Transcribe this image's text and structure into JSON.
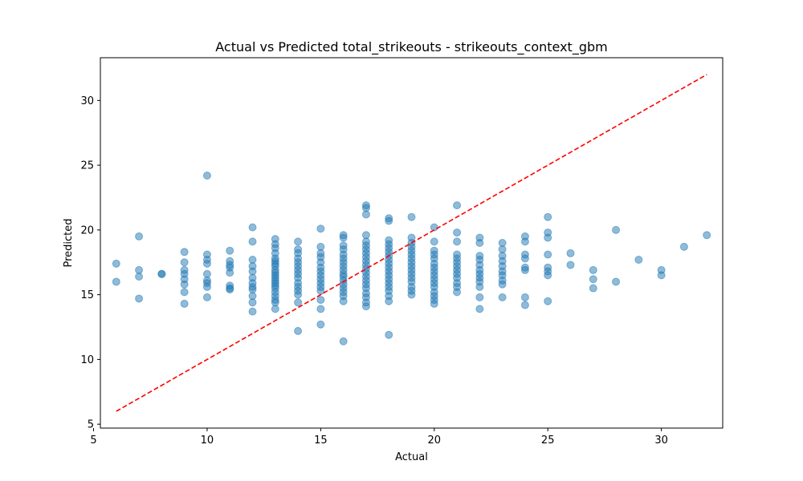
{
  "chart_data": {
    "type": "scatter",
    "title": "Actual vs Predicted total_strikeouts - strikeouts_context_gbm",
    "xlabel": "Actual",
    "ylabel": "Predicted",
    "xlim": [
      5.3,
      32.7
    ],
    "ylim": [
      4.7,
      33.3
    ],
    "x_ticks": [
      5,
      10,
      15,
      20,
      25,
      30
    ],
    "y_ticks": [
      5,
      10,
      15,
      20,
      25,
      30
    ],
    "grid": false,
    "point_color": "#1f77b4",
    "point_alpha": 0.5,
    "reference_line": {
      "x": [
        6,
        32
      ],
      "y": [
        6,
        32
      ],
      "color": "#ff0000",
      "style": "dashed"
    },
    "points": [
      [
        6,
        17.4
      ],
      [
        6,
        16.0
      ],
      [
        7,
        19.5
      ],
      [
        7,
        16.9
      ],
      [
        7,
        16.4
      ],
      [
        7,
        14.7
      ],
      [
        8,
        16.6
      ],
      [
        8,
        16.6
      ],
      [
        9,
        18.3
      ],
      [
        9,
        17.5
      ],
      [
        9,
        16.9
      ],
      [
        9,
        16.6
      ],
      [
        9,
        16.2
      ],
      [
        9,
        15.8
      ],
      [
        9,
        15.2
      ],
      [
        9,
        14.3
      ],
      [
        10,
        24.2
      ],
      [
        10,
        18.1
      ],
      [
        10,
        17.7
      ],
      [
        10,
        17.4
      ],
      [
        10,
        16.6
      ],
      [
        10,
        16.1
      ],
      [
        10,
        15.9
      ],
      [
        10,
        15.6
      ],
      [
        10,
        14.8
      ],
      [
        11,
        18.4
      ],
      [
        11,
        17.6
      ],
      [
        11,
        17.3
      ],
      [
        11,
        17.1
      ],
      [
        11,
        16.7
      ],
      [
        11,
        15.7
      ],
      [
        11,
        15.5
      ],
      [
        11,
        15.4
      ],
      [
        12,
        20.2
      ],
      [
        12,
        19.1
      ],
      [
        12,
        17.7
      ],
      [
        12,
        17.2
      ],
      [
        12,
        16.8
      ],
      [
        12,
        16.3
      ],
      [
        12,
        15.9
      ],
      [
        12,
        15.6
      ],
      [
        12,
        15.4
      ],
      [
        12,
        14.9
      ],
      [
        12,
        14.4
      ],
      [
        12,
        13.7
      ],
      [
        13,
        19.3
      ],
      [
        13,
        18.9
      ],
      [
        13,
        18.6
      ],
      [
        13,
        18.2
      ],
      [
        13,
        17.8
      ],
      [
        13,
        17.6
      ],
      [
        13,
        17.4
      ],
      [
        13,
        17.2
      ],
      [
        13,
        16.9
      ],
      [
        13,
        16.7
      ],
      [
        13,
        16.5
      ],
      [
        13,
        16.3
      ],
      [
        13,
        16.1
      ],
      [
        13,
        15.9
      ],
      [
        13,
        15.7
      ],
      [
        13,
        15.5
      ],
      [
        13,
        15.2
      ],
      [
        13,
        14.9
      ],
      [
        13,
        14.6
      ],
      [
        13,
        14.4
      ],
      [
        13,
        13.9
      ],
      [
        14,
        19.1
      ],
      [
        14,
        18.5
      ],
      [
        14,
        18.2
      ],
      [
        14,
        17.8
      ],
      [
        14,
        17.5
      ],
      [
        14,
        17.2
      ],
      [
        14,
        16.9
      ],
      [
        14,
        16.6
      ],
      [
        14,
        16.3
      ],
      [
        14,
        15.9
      ],
      [
        14,
        15.6
      ],
      [
        14,
        15.3
      ],
      [
        14,
        15.0
      ],
      [
        14,
        14.4
      ],
      [
        14,
        12.2
      ],
      [
        15,
        20.1
      ],
      [
        15,
        18.7
      ],
      [
        15,
        18.2
      ],
      [
        15,
        17.9
      ],
      [
        15,
        17.5
      ],
      [
        15,
        17.1
      ],
      [
        15,
        16.8
      ],
      [
        15,
        16.5
      ],
      [
        15,
        16.2
      ],
      [
        15,
        15.9
      ],
      [
        15,
        15.6
      ],
      [
        15,
        15.3
      ],
      [
        15,
        14.6
      ],
      [
        15,
        13.9
      ],
      [
        15,
        12.7
      ],
      [
        16,
        19.6
      ],
      [
        16,
        19.4
      ],
      [
        16,
        18.8
      ],
      [
        16,
        18.5
      ],
      [
        16,
        18.1
      ],
      [
        16,
        17.8
      ],
      [
        16,
        17.5
      ],
      [
        16,
        17.2
      ],
      [
        16,
        16.9
      ],
      [
        16,
        16.6
      ],
      [
        16,
        16.4
      ],
      [
        16,
        16.1
      ],
      [
        16,
        15.8
      ],
      [
        16,
        15.5
      ],
      [
        16,
        15.2
      ],
      [
        16,
        14.9
      ],
      [
        16,
        14.5
      ],
      [
        16,
        11.4
      ],
      [
        17,
        21.9
      ],
      [
        17,
        21.7
      ],
      [
        17,
        21.2
      ],
      [
        17,
        19.6
      ],
      [
        17,
        19.1
      ],
      [
        17,
        18.8
      ],
      [
        17,
        18.5
      ],
      [
        17,
        18.2
      ],
      [
        17,
        17.9
      ],
      [
        17,
        17.6
      ],
      [
        17,
        17.3
      ],
      [
        17,
        17.0
      ],
      [
        17,
        16.7
      ],
      [
        17,
        16.4
      ],
      [
        17,
        16.1
      ],
      [
        17,
        15.8
      ],
      [
        17,
        15.5
      ],
      [
        17,
        15.1
      ],
      [
        17,
        14.8
      ],
      [
        17,
        14.4
      ],
      [
        17,
        14.1
      ],
      [
        18,
        20.9
      ],
      [
        18,
        20.7
      ],
      [
        18,
        19.2
      ],
      [
        18,
        18.9
      ],
      [
        18,
        18.6
      ],
      [
        18,
        18.3
      ],
      [
        18,
        18.0
      ],
      [
        18,
        17.7
      ],
      [
        18,
        17.4
      ],
      [
        18,
        17.1
      ],
      [
        18,
        16.8
      ],
      [
        18,
        16.5
      ],
      [
        18,
        16.2
      ],
      [
        18,
        15.9
      ],
      [
        18,
        15.6
      ],
      [
        18,
        15.3
      ],
      [
        18,
        14.9
      ],
      [
        18,
        14.5
      ],
      [
        18,
        11.9
      ],
      [
        19,
        21.0
      ],
      [
        19,
        19.4
      ],
      [
        19,
        19.0
      ],
      [
        19,
        18.7
      ],
      [
        19,
        18.4
      ],
      [
        19,
        18.1
      ],
      [
        19,
        17.8
      ],
      [
        19,
        17.5
      ],
      [
        19,
        17.2
      ],
      [
        19,
        16.9
      ],
      [
        19,
        16.6
      ],
      [
        19,
        16.3
      ],
      [
        19,
        16.0
      ],
      [
        19,
        15.6
      ],
      [
        19,
        15.3
      ],
      [
        19,
        15.0
      ],
      [
        20,
        20.2
      ],
      [
        20,
        19.1
      ],
      [
        20,
        18.4
      ],
      [
        20,
        18.1
      ],
      [
        20,
        17.8
      ],
      [
        20,
        17.4
      ],
      [
        20,
        17.1
      ],
      [
        20,
        16.8
      ],
      [
        20,
        16.5
      ],
      [
        20,
        16.2
      ],
      [
        20,
        15.9
      ],
      [
        20,
        15.6
      ],
      [
        20,
        15.2
      ],
      [
        20,
        14.9
      ],
      [
        20,
        14.6
      ],
      [
        20,
        14.3
      ],
      [
        21,
        21.9
      ],
      [
        21,
        19.8
      ],
      [
        21,
        19.1
      ],
      [
        21,
        18.1
      ],
      [
        21,
        17.8
      ],
      [
        21,
        17.5
      ],
      [
        21,
        17.2
      ],
      [
        21,
        16.9
      ],
      [
        21,
        16.6
      ],
      [
        21,
        16.3
      ],
      [
        21,
        15.9
      ],
      [
        21,
        15.6
      ],
      [
        21,
        15.2
      ],
      [
        22,
        19.4
      ],
      [
        22,
        19.0
      ],
      [
        22,
        18.0
      ],
      [
        22,
        17.7
      ],
      [
        22,
        17.3
      ],
      [
        22,
        16.9
      ],
      [
        22,
        16.6
      ],
      [
        22,
        16.3
      ],
      [
        22,
        16.0
      ],
      [
        22,
        15.6
      ],
      [
        22,
        14.8
      ],
      [
        22,
        13.9
      ],
      [
        23,
        19.0
      ],
      [
        23,
        18.5
      ],
      [
        23,
        18.0
      ],
      [
        23,
        17.6
      ],
      [
        23,
        17.2
      ],
      [
        23,
        16.8
      ],
      [
        23,
        16.5
      ],
      [
        23,
        16.1
      ],
      [
        23,
        15.8
      ],
      [
        23,
        14.8
      ],
      [
        24,
        19.5
      ],
      [
        24,
        19.1
      ],
      [
        24,
        18.1
      ],
      [
        24,
        17.8
      ],
      [
        24,
        17.1
      ],
      [
        24,
        16.9
      ],
      [
        24,
        14.8
      ],
      [
        24,
        14.2
      ],
      [
        25,
        21.0
      ],
      [
        25,
        19.8
      ],
      [
        25,
        19.4
      ],
      [
        25,
        18.1
      ],
      [
        25,
        17.1
      ],
      [
        25,
        16.8
      ],
      [
        25,
        16.5
      ],
      [
        25,
        14.5
      ],
      [
        26,
        18.2
      ],
      [
        26,
        17.3
      ],
      [
        27,
        16.9
      ],
      [
        27,
        16.2
      ],
      [
        27,
        15.5
      ],
      [
        28,
        20.0
      ],
      [
        28,
        16.0
      ],
      [
        29,
        17.7
      ],
      [
        30,
        16.9
      ],
      [
        30,
        16.5
      ],
      [
        31,
        18.7
      ],
      [
        32,
        19.6
      ]
    ]
  }
}
